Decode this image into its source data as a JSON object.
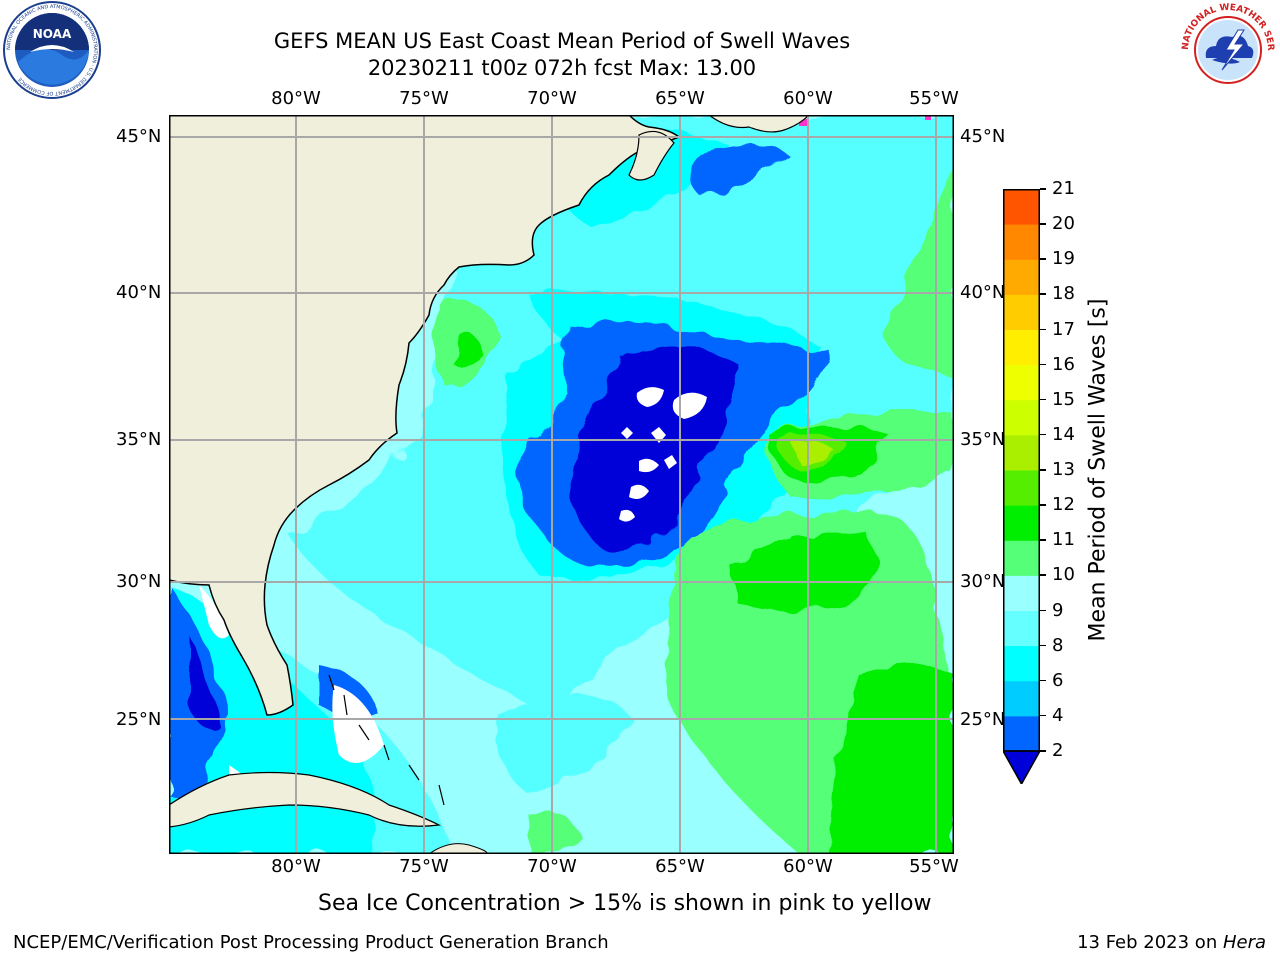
{
  "title_line1": "GEFS MEAN US East Coast Mean Period of Swell Waves",
  "title_line2": "20230211 t00z 072h fcst   Max: 13.00",
  "logos": {
    "left": "noaa-logo",
    "left_ring_text": "NATIONAL OCEANIC AND ATMOSPHERIC ADMINISTRATION · U.S. DEPARTMENT OF COMMERCE",
    "left_center_text": "NOAA",
    "right": "nws-logo",
    "right_ring_text": "NATIONAL WEATHER SERVICE"
  },
  "map": {
    "lon_labels": [
      "80°W",
      "75°W",
      "70°W",
      "65°W",
      "60°W",
      "55°W"
    ],
    "lat_labels": [
      "45°N",
      "40°N",
      "35°N",
      "30°N",
      "25°N"
    ],
    "field": "Mean Period of Swell Waves",
    "max_value": 13.0,
    "colors": {
      "land": "#efefdc",
      "coast": "#000000",
      "grid": "#a8a8a8"
    }
  },
  "colorbar": {
    "label": "Mean Period of Swell Waves [s]",
    "ticks": [
      "2",
      "4",
      "6",
      "8",
      "9",
      "10",
      "11",
      "12",
      "13",
      "14",
      "15",
      "16",
      "17",
      "18",
      "19",
      "20",
      "21"
    ],
    "colors": [
      "#0000d8",
      "#0066ff",
      "#00ccff",
      "#00ffff",
      "#66ffff",
      "#99ffff",
      "#55ff77",
      "#00ee00",
      "#55ee00",
      "#aaee00",
      "#ccff00",
      "#eeff00",
      "#ffee00",
      "#ffcc00",
      "#ffaa00",
      "#ff8800",
      "#ff5500",
      "#ff2200",
      "#ff0000"
    ]
  },
  "footer": {
    "note": "Sea Ice Concentration > 15% is shown in pink to yellow",
    "left": "NCEP/EMC/Verification Post Processing Product Generation Branch",
    "right_date": "13 Feb 2023 on ",
    "right_host": "Hera"
  }
}
